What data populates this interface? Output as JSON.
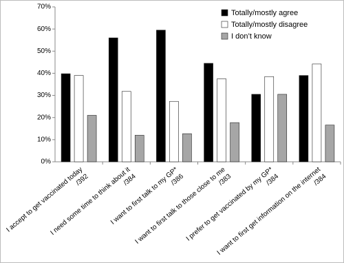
{
  "chart_data": {
    "type": "bar",
    "categories": [
      [
        "I accept to get vaccinated today",
        "/392"
      ],
      [
        "I need some time to think about it",
        "/384"
      ],
      [
        "I want to first talk to my GP*",
        "/386"
      ],
      [
        "I want to first talk to those close to me",
        "/383"
      ],
      [
        "I prefer to get vaccinated by my GP*",
        "/384"
      ],
      [
        "I want to first get information on the internet",
        "/384"
      ]
    ],
    "series": [
      {
        "name": "Totally/mostly agree",
        "color": "#000000",
        "values": [
          39.8,
          56,
          59.5,
          44.5,
          30.5,
          39
        ]
      },
      {
        "name": "Totally/mostly disagree",
        "color": "#ffffff",
        "values": [
          39,
          31.8,
          27.3,
          37.5,
          38.5,
          44.2
        ]
      },
      {
        "name": "I don’t know",
        "color": "#a6a6a6",
        "values": [
          21,
          12,
          12.7,
          17.7,
          30.5,
          16.6
        ]
      }
    ],
    "ylim": [
      0,
      70
    ],
    "yticks": [
      {
        "value": 0,
        "label": "0%"
      },
      {
        "value": 10,
        "label": "10%"
      },
      {
        "value": 20,
        "label": "20%"
      },
      {
        "value": 30,
        "label": "30%"
      },
      {
        "value": 40,
        "label": "40%"
      },
      {
        "value": 50,
        "label": "50%"
      },
      {
        "value": 60,
        "label": "60%"
      },
      {
        "value": 70,
        "label": "70%"
      }
    ],
    "legend": "top-right",
    "grid": false
  }
}
